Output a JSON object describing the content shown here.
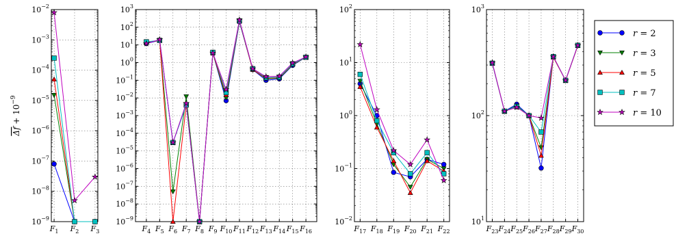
{
  "chart_data": {
    "type": "line",
    "ylabel": "$\\overline{\\Delta f} + 10^{-9}$",
    "yscale": "log",
    "grid": true,
    "legend_position": "right",
    "series_styles": [
      {
        "name": "r = 2",
        "color": "#0000ff",
        "marker": "circle"
      },
      {
        "name": "r = 3",
        "color": "#008000",
        "marker": "triangle-down"
      },
      {
        "name": "r = 5",
        "color": "#ff0000",
        "marker": "triangle-up"
      },
      {
        "name": "r = 7",
        "color": "#00bfbf",
        "marker": "square"
      },
      {
        "name": "r = 10",
        "color": "#bf00bf",
        "marker": "star"
      }
    ],
    "legend": [
      {
        "var": "r",
        "value": "2"
      },
      {
        "var": "r",
        "value": "3"
      },
      {
        "var": "r",
        "value": "5"
      },
      {
        "var": "r",
        "value": "7"
      },
      {
        "var": "r",
        "value": "10"
      }
    ],
    "panels": [
      {
        "ylim_exp": [
          -9,
          -2
        ],
        "categories": [
          [
            "F",
            "1"
          ],
          [
            "F",
            "2"
          ],
          [
            "F",
            "3"
          ]
        ],
        "series": [
          [
            8e-08,
            1e-09,
            1e-09
          ],
          [
            1.5e-05,
            1e-09,
            1e-09
          ],
          [
            5e-05,
            1e-09,
            1e-09
          ],
          [
            0.00025,
            1e-09,
            1e-09
          ],
          [
            0.008,
            5e-09,
            3e-08
          ]
        ]
      },
      {
        "ylim_exp": [
          -9,
          3
        ],
        "categories": [
          [
            "F",
            "4"
          ],
          [
            "F",
            "5"
          ],
          [
            "F",
            "6"
          ],
          [
            "F",
            "7"
          ],
          [
            "F",
            "8"
          ],
          [
            "F",
            "9"
          ],
          [
            "F",
            "10"
          ],
          [
            "F",
            "11"
          ],
          [
            "F",
            "12"
          ],
          [
            "F",
            "13"
          ],
          [
            "F",
            "14"
          ],
          [
            "F",
            "15"
          ],
          [
            "F",
            "16"
          ]
        ],
        "series": [
          [
            12,
            18,
            3e-05,
            0.004,
            1e-09,
            3.5,
            0.007,
            200,
            0.4,
            0.1,
            0.12,
            0.7,
            2
          ],
          [
            13,
            18,
            5e-08,
            0.012,
            1e-09,
            3.5,
            0.01,
            210,
            0.4,
            0.12,
            0.13,
            0.75,
            2
          ],
          [
            14,
            18,
            1e-09,
            0.004,
            1e-09,
            3.5,
            0.015,
            220,
            0.4,
            0.13,
            0.14,
            0.8,
            2
          ],
          [
            15,
            18,
            3e-05,
            0.004,
            1e-09,
            3.8,
            0.02,
            230,
            0.45,
            0.14,
            0.15,
            0.85,
            2
          ],
          [
            12,
            20,
            3e-05,
            0.005,
            1e-09,
            3.5,
            0.03,
            260,
            0.45,
            0.16,
            0.17,
            0.95,
            2.1
          ]
        ]
      },
      {
        "ylim_exp": [
          -2,
          2
        ],
        "categories": [
          [
            "F",
            "17"
          ],
          [
            "F",
            "18"
          ],
          [
            "F",
            "19"
          ],
          [
            "F",
            "20"
          ],
          [
            "F",
            "21"
          ],
          [
            "F",
            "22"
          ]
        ],
        "series": [
          [
            4,
            1,
            0.085,
            0.07,
            0.15,
            0.12
          ],
          [
            4.5,
            0.7,
            0.12,
            0.045,
            0.15,
            0.1
          ],
          [
            3.5,
            0.6,
            0.14,
            0.035,
            0.14,
            0.09
          ],
          [
            6,
            0.8,
            0.2,
            0.08,
            0.2,
            0.08
          ],
          [
            22,
            1.3,
            0.22,
            0.12,
            0.35,
            0.06
          ]
        ]
      },
      {
        "ylim_exp": [
          1,
          3
        ],
        "categories": [
          [
            "F",
            "23"
          ],
          [
            "F",
            "24"
          ],
          [
            "F",
            "25"
          ],
          [
            "F",
            "26"
          ],
          [
            "F",
            "27"
          ],
          [
            "F",
            "28"
          ],
          [
            "F",
            "29"
          ],
          [
            "F",
            "30"
          ]
        ],
        "series": [
          [
            310,
            110,
            128,
            100,
            32,
            360,
            215,
            460
          ],
          [
            312,
            110,
            124,
            100,
            50,
            355,
            215,
            455
          ],
          [
            312,
            110,
            120,
            100,
            42,
            355,
            215,
            455
          ],
          [
            312,
            110,
            122,
            100,
            70,
            360,
            215,
            460
          ],
          [
            315,
            110,
            120,
            100,
            95,
            360,
            215,
            460
          ]
        ]
      }
    ]
  }
}
